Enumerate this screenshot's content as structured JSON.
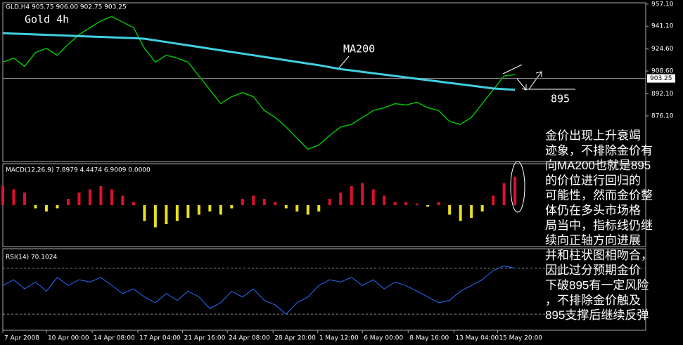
{
  "header": "GLD,H4 905.75 906.00 902.75 903.25",
  "chart_data": [
    {
      "type": "line",
      "title": "Gold 4h",
      "annotation": "MA200",
      "support_label": "895",
      "last_price": {
        "value": 903.25,
        "label": "903.25"
      },
      "xlim": [
        0,
        59
      ],
      "xticks": [
        {
          "value": 0,
          "label": "7 Apr 2008"
        },
        {
          "value": 4,
          "label": "10 Apr 00:00"
        },
        {
          "value": 8.2,
          "label": "14 Apr 08:00"
        },
        {
          "value": 12.4,
          "label": "17 Apr 04:00"
        },
        {
          "value": 16.5,
          "label": "21 Apr 16:00"
        },
        {
          "value": 20.6,
          "label": "24 Apr 08:00"
        },
        {
          "value": 24.8,
          "label": "28 Apr 20:00"
        },
        {
          "value": 28.9,
          "label": "1 May 12:00"
        },
        {
          "value": 33,
          "label": "6 May 00:00"
        },
        {
          "value": 37.2,
          "label": "8 May 16:00"
        },
        {
          "value": 41.4,
          "label": "13 May 04:00"
        },
        {
          "value": 45.4,
          "label": "15 May 20:00"
        }
      ],
      "ylim": [
        843,
        958
      ],
      "yticks": [
        {
          "value": 957.1,
          "label": "957.10"
        },
        {
          "value": 941.1,
          "label": "941.10"
        },
        {
          "value": 924.6,
          "label": "924.60"
        },
        {
          "value": 908.6,
          "label": "908.60"
        },
        {
          "value": 892.1,
          "label": "892.10"
        },
        {
          "value": 876.1,
          "label": "876.10"
        }
      ],
      "series": [
        {
          "name": "GLD",
          "color": "#00c000",
          "values": [
            915,
            918,
            912,
            922,
            925,
            920,
            928,
            935,
            940,
            945,
            948,
            944,
            940,
            925,
            915,
            920,
            918,
            915,
            905,
            895,
            885,
            890,
            893,
            890,
            880,
            875,
            868,
            860,
            852,
            855,
            862,
            868,
            870,
            875,
            880,
            882,
            885,
            884,
            886,
            882,
            880,
            872,
            870,
            875,
            885,
            895,
            905,
            906
          ]
        },
        {
          "name": "MA200",
          "color": "#40d0e0",
          "values": [
            936,
            935.7,
            935.4,
            935.1,
            934.8,
            934.5,
            934.2,
            933.9,
            933.6,
            933.3,
            933,
            932.7,
            932.4,
            932,
            930.8,
            929.6,
            928.4,
            927.2,
            926,
            924.8,
            923.6,
            922.4,
            921.2,
            920,
            918.8,
            917.6,
            916.4,
            915.2,
            914,
            912.8,
            911.4,
            910,
            909,
            908,
            907,
            906,
            905,
            904,
            903,
            902,
            901,
            900,
            899,
            898,
            897,
            896,
            895.5,
            895
          ]
        }
      ]
    },
    {
      "type": "bar",
      "title": "MACD(12,26,9) 7.8979 4.4474 6.9009 0.0000",
      "ylim": [
        -12,
        12
      ],
      "values": [
        6,
        5,
        4,
        -1,
        -2,
        -1,
        2,
        4,
        5,
        6,
        5,
        3,
        1,
        -5,
        -7,
        -6,
        -5,
        -4,
        -3,
        -2,
        -3,
        -1,
        2,
        3,
        2,
        1,
        -1,
        -2,
        -3,
        -2,
        2,
        4,
        6,
        7,
        5,
        3,
        1,
        1,
        0.5,
        -0.5,
        1,
        -3,
        -5,
        -4,
        -2,
        3,
        7,
        9
      ],
      "colors": {
        "positive": "#e0102a",
        "negative": "#e8e020"
      }
    },
    {
      "type": "line",
      "title": "RSI(14) 70.1024",
      "ylim": [
        16,
        87
      ],
      "levels": [
        70,
        30
      ],
      "color": "#2a6cff",
      "values": [
        55,
        60,
        52,
        58,
        50,
        62,
        55,
        60,
        58,
        62,
        55,
        48,
        52,
        45,
        40,
        48,
        42,
        50,
        45,
        35,
        40,
        50,
        45,
        52,
        42,
        38,
        30,
        40,
        45,
        55,
        60,
        58,
        62,
        55,
        60,
        52,
        58,
        55,
        50,
        45,
        40,
        42,
        50,
        55,
        60,
        68,
        72,
        70
      ]
    }
  ],
  "comment": [
    "金价出现上升衰竭",
    "迹象，不排除金价有",
    "向MA200也就是895",
    "的价位进行回归的",
    "可能性，然而金价整",
    "体仍在多头市场格",
    "局当中，指标线仍继",
    "续向正轴方向进展",
    "并和柱状图相吻合，",
    "因此过分预期金价",
    "下破895有一定风险",
    "，不排除金价触及",
    "895支撑后继续反弹"
  ]
}
